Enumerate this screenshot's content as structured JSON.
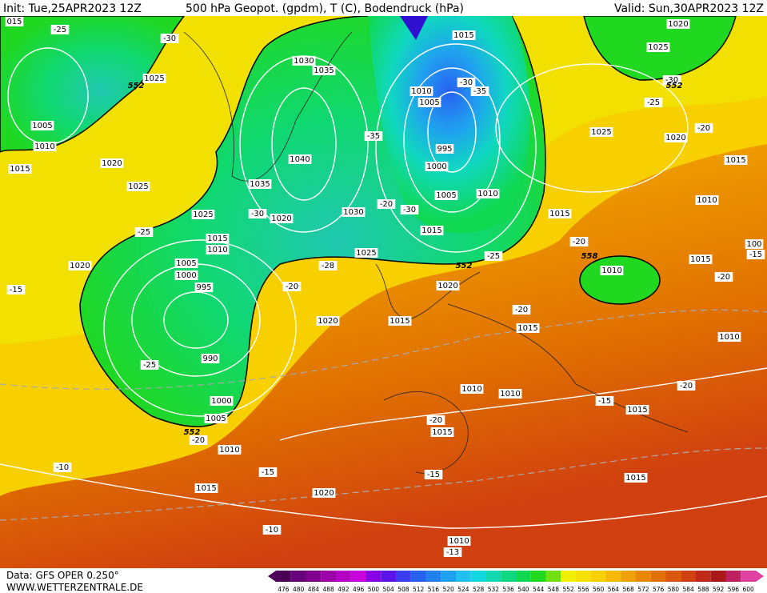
{
  "header": {
    "init": "Init: Tue,25APR2023 12Z",
    "title": "500 hPa Geopot. (gpdm), T (C), Bodendruck (hPa)",
    "valid": "Valid: Sun,30APR2023 12Z"
  },
  "map": {
    "labels": [
      "015",
      "-25",
      "-30",
      "1025",
      "552",
      "1005",
      "1010",
      "1015",
      "1020",
      "1025",
      "1025",
      "-25",
      "1030",
      "1035",
      "1040",
      "1035",
      "-30",
      "1020",
      "1030",
      "-35",
      "-20",
      "-30",
      "1015",
      "1010",
      "-30",
      "-35",
      "1005",
      "995",
      "1000",
      "1005",
      "1010",
      "1015",
      "-25",
      "552",
      "1025",
      "1015",
      "1010",
      "1020",
      "1005",
      "1000",
      "995",
      "-28",
      "-20",
      "1020",
      "-15",
      "1020",
      "1015",
      "990",
      "-25",
      "1000",
      "1005",
      "552",
      "-20",
      "1010",
      "1020",
      "1025",
      "-30",
      "552",
      "-25",
      "1025",
      "1020",
      "-20",
      "1015",
      "1010",
      "1015",
      "-20",
      "558",
      "1010",
      "1015",
      "100",
      "-15",
      "-20",
      "-20",
      "1015",
      "1010",
      "-20",
      "1010",
      "1010",
      "-15",
      "1015",
      "-20",
      "1015",
      "-10",
      "-15",
      "-15",
      "1015",
      "1020",
      "1015",
      "-10",
      "1010",
      "-13"
    ]
  },
  "scale": {
    "values": [
      476,
      480,
      484,
      488,
      492,
      496,
      500,
      504,
      508,
      512,
      516,
      520,
      524,
      528,
      532,
      536,
      540,
      544,
      548,
      552,
      556,
      560,
      564,
      568,
      572,
      576,
      580,
      584,
      588,
      592,
      596,
      600
    ],
    "colors": [
      "#4a0055",
      "#66007a",
      "#80008f",
      "#9b00a8",
      "#b400c4",
      "#c800dc",
      "#8a00e6",
      "#5a14e6",
      "#3c3cf0",
      "#2860f0",
      "#2080f0",
      "#20a0f0",
      "#20c0f0",
      "#10d8e0",
      "#10d8b0",
      "#10d880",
      "#10d850",
      "#20d820",
      "#70e010",
      "#f0f000",
      "#f8e000",
      "#f8d000",
      "#f8b800",
      "#f0a000",
      "#e88800",
      "#e07000",
      "#d85810",
      "#d04010",
      "#c02818",
      "#a81818",
      "#c02060",
      "#e040a0"
    ]
  },
  "footer": {
    "data": "Data: GFS OPER 0.250°",
    "site": "WWW.WETTERZENTRALE.DE"
  }
}
